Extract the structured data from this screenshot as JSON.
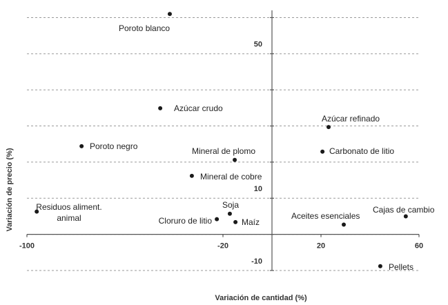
{
  "chart_data": {
    "type": "scatter",
    "xlabel": "Variación de cantidad (%)",
    "ylabel": "Variación de precio (%)",
    "labels": [
      "Poroto blanco",
      "Azúcar crudo",
      "Azúcar refinado",
      "Poroto negro",
      "Carbonato de litio",
      "Mineral de plomo",
      "Mineral de cobre",
      "Residuos aliment.\nanimal",
      "Soja",
      "Cloruro de litio",
      "Maíz",
      "Aceites esenciales",
      "Cajas de cambio",
      "Pellets"
    ],
    "x": [
      -41.7,
      -45.6,
      23.1,
      -77.7,
      20.6,
      -15.2,
      -32.7,
      -96,
      -17.2,
      -22.5,
      -14.9,
      29.3,
      54.6,
      44.2
    ],
    "values": [
      61,
      34.9,
      29.7,
      24.4,
      22.9,
      20.6,
      16.2,
      6.3,
      5.7,
      4.2,
      3.4,
      2.7,
      5.0,
      -8.8
    ],
    "color": "#1a1a1a",
    "xlim": [
      -100,
      60
    ],
    "xticks": [
      -100,
      -20,
      20,
      60
    ],
    "ylim": [
      -10,
      62
    ],
    "yticks": [
      -10,
      10,
      50
    ],
    "ygrid": [
      -10,
      0,
      10,
      20,
      30,
      40,
      50,
      60
    ]
  }
}
